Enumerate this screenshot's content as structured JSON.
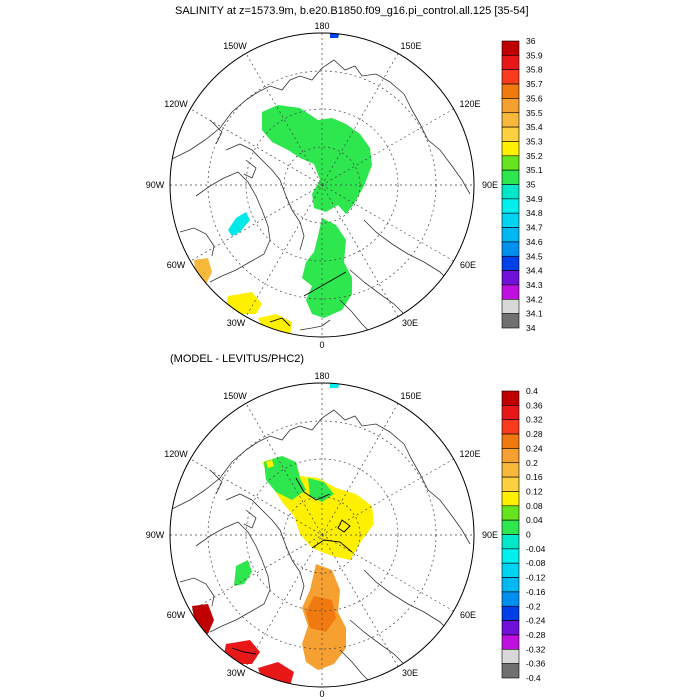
{
  "panels": [
    {
      "title": "SALINITY at z=1573.9m, b.e20.B1850.f09_g16.pi_control.all.125 [35-54]",
      "lon_labels": [
        "180",
        "150E",
        "120E",
        "90E",
        "60E",
        "30E",
        "0",
        "30W",
        "60W",
        "90W",
        "120W",
        "150W"
      ],
      "colorbar": {
        "labels": [
          "36",
          "35.9",
          "35.8",
          "35.7",
          "35.6",
          "35.5",
          "35.4",
          "35.3",
          "35.2",
          "35.1",
          "35",
          "34.9",
          "34.8",
          "34.7",
          "34.6",
          "34.5",
          "34.4",
          "34.3",
          "34.2",
          "34.1",
          "34"
        ],
        "colors": [
          "#c00000",
          "#e81818",
          "#f83c1c",
          "#f07a10",
          "#f6a032",
          "#f8b83c",
          "#fcd040",
          "#fff000",
          "#66e41e",
          "#2ee64e",
          "#00e8c8",
          "#00f0f0",
          "#00d4f4",
          "#00b8f4",
          "#0090f0",
          "#0040e8",
          "#7010d8",
          "#c010e0",
          "#d8d8d8",
          "#707070"
        ]
      }
    },
    {
      "title": "(MODEL - LEVITUS/PHC2)",
      "lon_labels": [
        "180",
        "150E",
        "120E",
        "90E",
        "60E",
        "30E",
        "0",
        "30W",
        "60W",
        "90W",
        "120W",
        "150W"
      ],
      "colorbar": {
        "labels": [
          "0.4",
          "0.36",
          "0.32",
          "0.28",
          "0.24",
          "0.2",
          "0.16",
          "0.12",
          "0.08",
          "0.04",
          "0",
          "-0.04",
          "-0.08",
          "-0.12",
          "-0.16",
          "-0.2",
          "-0.24",
          "-0.28",
          "-0.32",
          "-0.36",
          "-0.4"
        ],
        "colors": [
          "#c00000",
          "#e81818",
          "#f83c1c",
          "#f07a10",
          "#f6a032",
          "#f8b83c",
          "#fcd040",
          "#fff000",
          "#66e41e",
          "#2ee64e",
          "#00e8c8",
          "#00f0f0",
          "#00d4f4",
          "#00b8f4",
          "#0090f0",
          "#0040e8",
          "#7010d8",
          "#c010e0",
          "#d8d8d8",
          "#707070"
        ]
      }
    }
  ]
}
